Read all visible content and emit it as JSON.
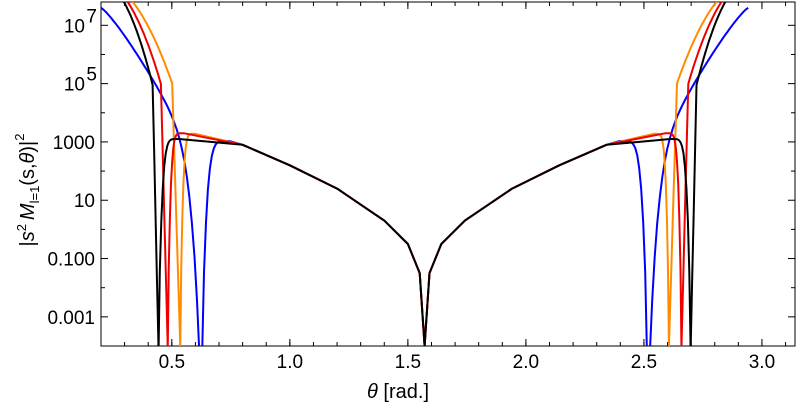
{
  "chart_data": {
    "type": "line",
    "xlabel_symbol": "θ",
    "xlabel_unit": "[rad.]",
    "ylabel": {
      "open": "|",
      "s": "s",
      "s_exp": "2",
      "M": "M",
      "M_sub": "l=1",
      "args_open": "(s,",
      "theta": "θ",
      "args_close": ")",
      "close": "|",
      "power": "2"
    },
    "xlim": [
      0.2,
      3.14
    ],
    "ylim_log10": [
      -4.0,
      7.8
    ],
    "yscale": "log",
    "x_ticks": [
      {
        "value": 0.5,
        "label": "0.5"
      },
      {
        "value": 1.0,
        "label": "1.0"
      },
      {
        "value": 1.5,
        "label": "1.5"
      },
      {
        "value": 2.0,
        "label": "2.0"
      },
      {
        "value": 2.5,
        "label": "2.5"
      },
      {
        "value": 3.0,
        "label": "3.0"
      }
    ],
    "y_ticks": [
      {
        "log10": -3,
        "label": "0.001"
      },
      {
        "log10": -1,
        "label": "0.100"
      },
      {
        "log10": 1,
        "label": "10"
      },
      {
        "log10": 3,
        "label": "1000"
      }
    ],
    "y_ticks_pow": [
      {
        "log10": 5,
        "base": "10",
        "exp": "5"
      },
      {
        "log10": 7,
        "base": "10",
        "exp": "7"
      }
    ],
    "series": [
      {
        "color": "#0000ff",
        "zero_left": 0.628,
        "peak_x": 0.745,
        "peak_log": 3.03
      },
      {
        "color": "#ff8c00",
        "zero_left": 0.535,
        "peak_x": 0.6,
        "peak_log": 3.28
      },
      {
        "color": "#ee0000",
        "zero_left": 0.482,
        "peak_x": 0.55,
        "peak_log": 3.3
      },
      {
        "color": "#000000",
        "zero_left": 0.443,
        "peak_x": 0.53,
        "peak_log": 3.1
      }
    ],
    "shared_middle": [
      {
        "x": 0.8,
        "log10": 2.9
      },
      {
        "x": 1.0,
        "log10": 2.2
      },
      {
        "x": 1.2,
        "log10": 1.4
      },
      {
        "x": 1.4,
        "log10": 0.3
      },
      {
        "x": 1.5,
        "log10": -0.5
      },
      {
        "x": 1.55,
        "log10": -1.5
      },
      {
        "x": 1.5708,
        "log10": -4.0
      }
    ]
  }
}
